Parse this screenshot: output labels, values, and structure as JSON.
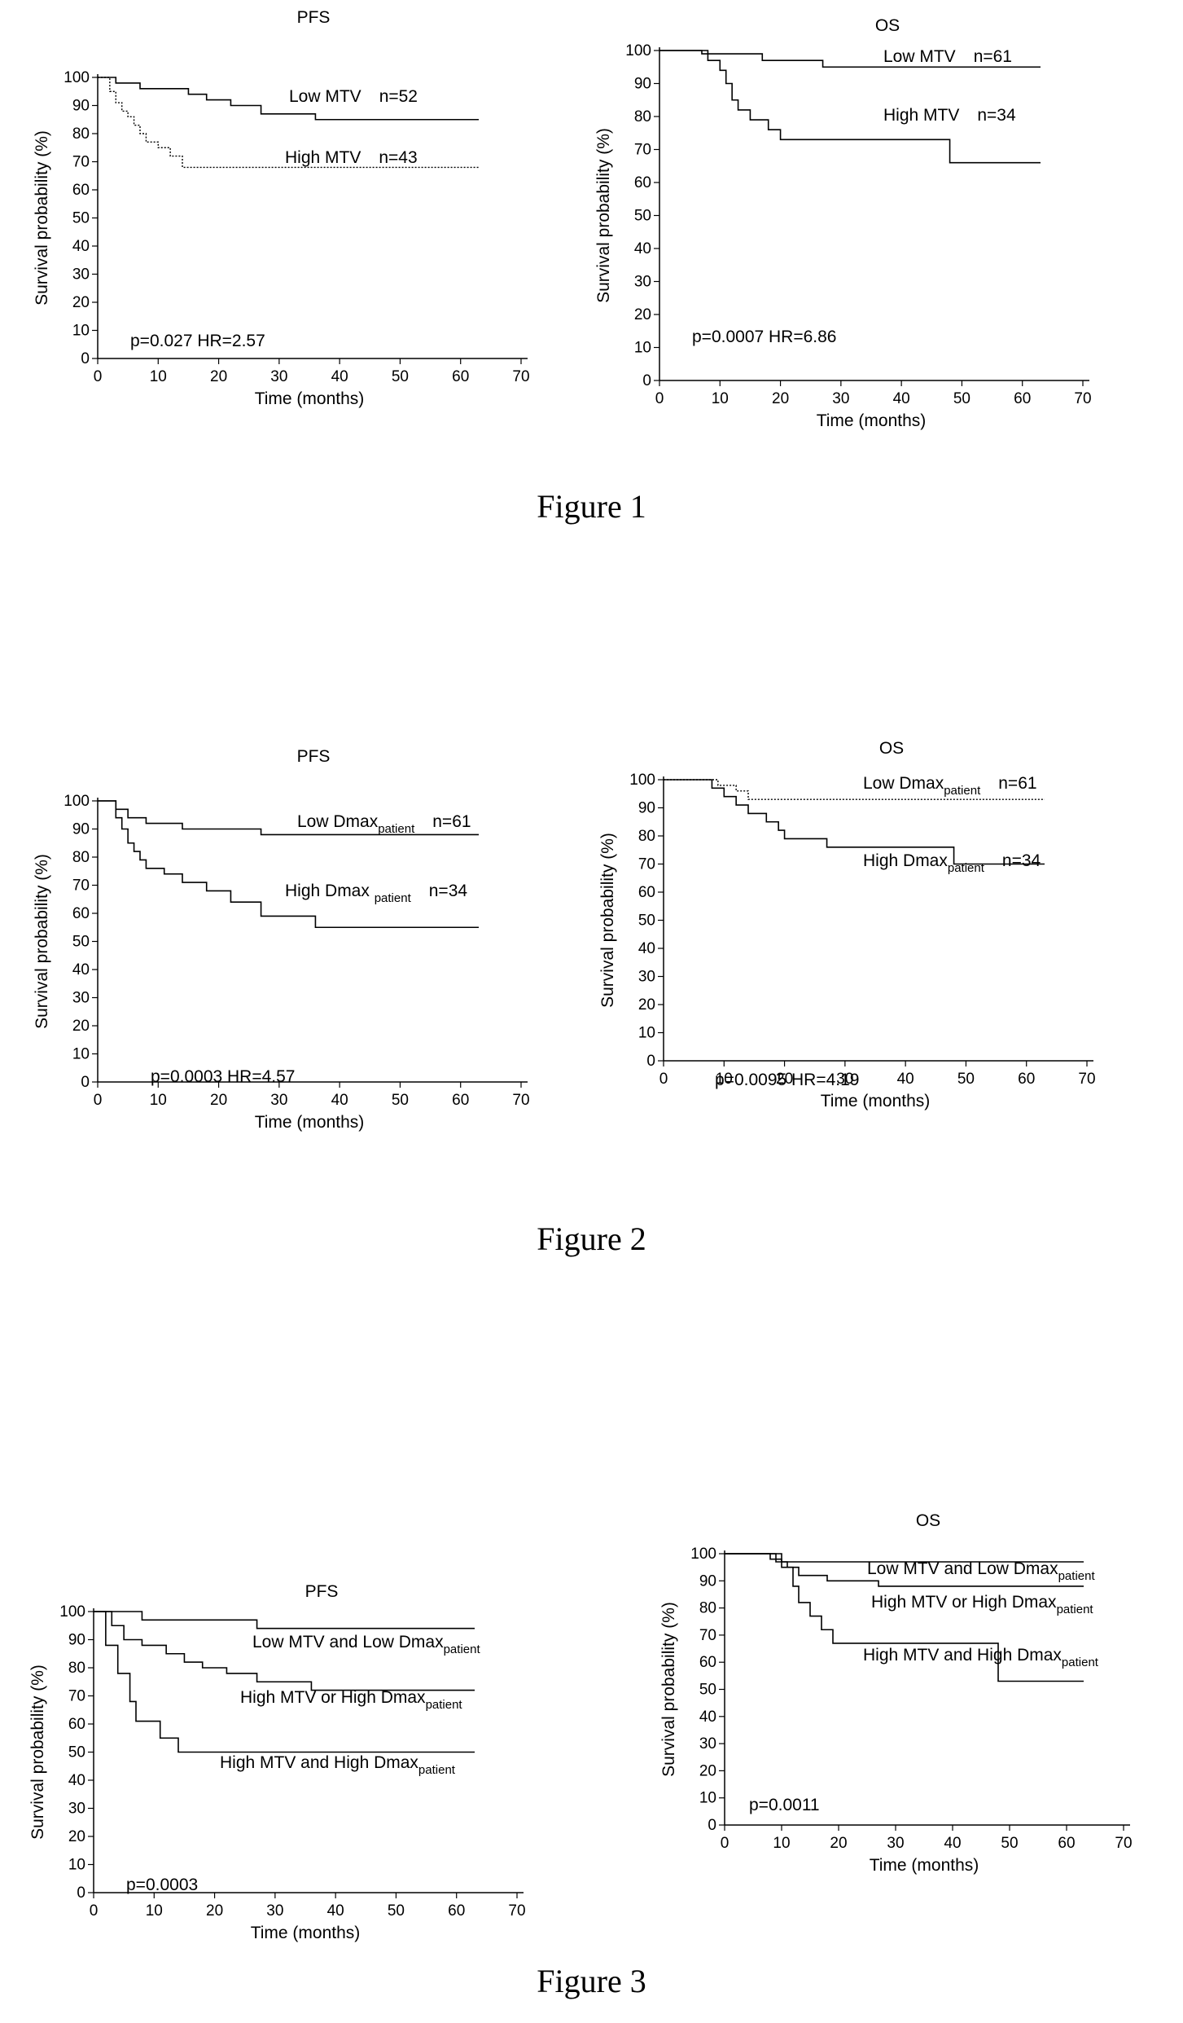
{
  "figures": [
    {
      "caption": "Figure 1"
    },
    {
      "caption": "Figure 2"
    },
    {
      "caption": "Figure 3"
    }
  ],
  "chart_data": [
    {
      "type": "line",
      "title": "PFS",
      "xlabel": "Time (months)",
      "ylabel": "Survival probability (%)",
      "xlim": [
        0,
        70
      ],
      "ylim": [
        0,
        100
      ],
      "xticks": [
        "0",
        "10",
        "20",
        "30",
        "40",
        "50",
        "60",
        "70"
      ],
      "yticks": [
        "0",
        "10",
        "20",
        "30",
        "40",
        "50",
        "60",
        "70",
        "80",
        "90",
        "100"
      ],
      "annotation": "p=0.027  HR=2.57",
      "series": [
        {
          "main": "Low MTV",
          "sub": "",
          "n": "n=52",
          "style": "solid",
          "x": [
            0,
            3,
            7,
            15,
            18,
            22,
            27,
            36,
            63
          ],
          "y": [
            100,
            98,
            96,
            94,
            92,
            90,
            87,
            85,
            85
          ]
        },
        {
          "main": "High MTV",
          "sub": "",
          "n": "n=43",
          "style": "dotted",
          "x": [
            0,
            2,
            3,
            4,
            5,
            6,
            7,
            8,
            10,
            12,
            14,
            63
          ],
          "y": [
            100,
            95,
            91,
            88,
            86,
            83,
            80,
            77,
            75,
            72,
            68,
            68
          ]
        }
      ]
    },
    {
      "type": "line",
      "title": "OS",
      "xlabel": "Time (months)",
      "ylabel": "Survival probability (%)",
      "xlim": [
        0,
        70
      ],
      "ylim": [
        0,
        100
      ],
      "xticks": [
        "0",
        "10",
        "20",
        "30",
        "40",
        "50",
        "60",
        "70"
      ],
      "yticks": [
        "0",
        "10",
        "20",
        "30",
        "40",
        "50",
        "60",
        "70",
        "80",
        "90",
        "100"
      ],
      "annotation": "p=0.0007  HR=6.86",
      "series": [
        {
          "main": "Low MTV",
          "sub": "",
          "n": "n=61",
          "style": "solid",
          "x": [
            0,
            7,
            17,
            27,
            63
          ],
          "y": [
            100,
            99,
            97,
            95,
            95
          ]
        },
        {
          "main": "High MTV",
          "sub": "",
          "n": "n=34",
          "style": "solid",
          "x": [
            0,
            8,
            10,
            11,
            12,
            13,
            15,
            18,
            20,
            47,
            48,
            63
          ],
          "y": [
            100,
            97,
            94,
            90,
            85,
            82,
            79,
            76,
            73,
            73,
            66,
            66
          ]
        }
      ]
    },
    {
      "type": "line",
      "title": "PFS",
      "xlabel": "Time (months)",
      "ylabel": "Survival probability (%)",
      "xlim": [
        0,
        70
      ],
      "ylim": [
        0,
        100
      ],
      "xticks": [
        "0",
        "10",
        "20",
        "30",
        "40",
        "50",
        "60",
        "70"
      ],
      "yticks": [
        "0",
        "10",
        "20",
        "30",
        "40",
        "50",
        "60",
        "70",
        "80",
        "90",
        "100"
      ],
      "annotation": "p=0.0003     HR=4.57",
      "series": [
        {
          "main": "Low Dmax",
          "sub": "patient",
          "n": "n=61",
          "style": "solid",
          "x": [
            0,
            3,
            5,
            8,
            14,
            27,
            63
          ],
          "y": [
            100,
            97,
            94,
            92,
            90,
            88,
            88
          ]
        },
        {
          "main": "High Dmax ",
          "sub": "patient",
          "n": "n=34",
          "style": "solid",
          "x": [
            0,
            3,
            4,
            5,
            6,
            7,
            8,
            11,
            14,
            18,
            22,
            27,
            36,
            63
          ],
          "y": [
            100,
            94,
            90,
            85,
            82,
            79,
            76,
            74,
            71,
            68,
            64,
            59,
            55,
            55
          ]
        }
      ]
    },
    {
      "type": "line",
      "title": "OS",
      "xlabel": "Time (months)",
      "ylabel": "Survival probability (%)",
      "xlim": [
        0,
        70
      ],
      "ylim": [
        0,
        100
      ],
      "xticks": [
        "0",
        "10",
        "20",
        "30",
        "40",
        "50",
        "60",
        "70"
      ],
      "yticks": [
        "0",
        "10",
        "20",
        "30",
        "40",
        "50",
        "60",
        "70",
        "80",
        "90",
        "100"
      ],
      "annotation": "p=0.0095   HR=4.19",
      "series": [
        {
          "main": "Low Dmax",
          "sub": "patient",
          "n": "n=61",
          "style": "dotted",
          "x": [
            0,
            9,
            12,
            14,
            63
          ],
          "y": [
            100,
            98,
            96,
            93,
            93
          ]
        },
        {
          "main": "High Dmax",
          "sub": "patient",
          "n": "n=34",
          "style": "solid",
          "x": [
            0,
            8,
            10,
            12,
            14,
            17,
            19,
            20,
            27,
            47,
            48,
            63
          ],
          "y": [
            100,
            97,
            94,
            91,
            88,
            85,
            82,
            79,
            76,
            76,
            70,
            70
          ]
        }
      ]
    },
    {
      "type": "line",
      "title": "PFS",
      "xlabel": "Time (months)",
      "ylabel": "Survival probability (%)",
      "xlim": [
        0,
        70
      ],
      "ylim": [
        0,
        100
      ],
      "xticks": [
        "0",
        "10",
        "20",
        "30",
        "40",
        "50",
        "60",
        "70"
      ],
      "yticks": [
        "0",
        "10",
        "20",
        "30",
        "40",
        "50",
        "60",
        "70",
        "80",
        "90",
        "100"
      ],
      "annotation": "p=0.0003",
      "series": [
        {
          "main": "Low MTV and Low Dmax",
          "sub": "patient",
          "n": "",
          "style": "solid",
          "x": [
            0,
            8,
            27,
            63
          ],
          "y": [
            100,
            97,
            94,
            94
          ]
        },
        {
          "main": "High MTV or High Dmax",
          "sub": "patient",
          "n": "",
          "style": "solid",
          "x": [
            0,
            3,
            5,
            8,
            12,
            15,
            18,
            22,
            27,
            36,
            63
          ],
          "y": [
            100,
            95,
            90,
            88,
            85,
            82,
            80,
            78,
            75,
            72,
            72
          ]
        },
        {
          "main": "High MTV and High Dmax",
          "sub": "patient",
          "n": "",
          "style": "solid",
          "x": [
            0,
            2,
            4,
            6,
            7,
            11,
            14,
            63
          ],
          "y": [
            100,
            88,
            78,
            68,
            61,
            55,
            50,
            50
          ]
        }
      ]
    },
    {
      "type": "line",
      "title": "OS",
      "xlabel": "Time (months)",
      "ylabel": "Survival probability (%)",
      "xlim": [
        0,
        70
      ],
      "ylim": [
        0,
        100
      ],
      "xticks": [
        "0",
        "10",
        "20",
        "30",
        "40",
        "50",
        "60",
        "70"
      ],
      "yticks": [
        "0",
        "10",
        "20",
        "30",
        "40",
        "50",
        "60",
        "70",
        "80",
        "90",
        "100"
      ],
      "annotation": "p=0.0011",
      "series": [
        {
          "main": "Low MTV and Low Dmax",
          "sub": "patient",
          "n": "",
          "style": "solid",
          "x": [
            0,
            8,
            10,
            63
          ],
          "y": [
            100,
            98,
            97,
            97
          ]
        },
        {
          "main": "High MTV or High Dmax",
          "sub": "patient",
          "n": "",
          "style": "solid",
          "x": [
            0,
            9,
            11,
            13,
            18,
            27,
            63
          ],
          "y": [
            100,
            97,
            95,
            92,
            90,
            88,
            88
          ]
        },
        {
          "main": "High MTV and High Dmax",
          "sub": "patient",
          "n": "",
          "style": "solid",
          "x": [
            0,
            10,
            12,
            13,
            15,
            17,
            19,
            47,
            48,
            63
          ],
          "y": [
            100,
            95,
            88,
            82,
            77,
            72,
            67,
            67,
            53,
            53
          ]
        }
      ]
    }
  ]
}
